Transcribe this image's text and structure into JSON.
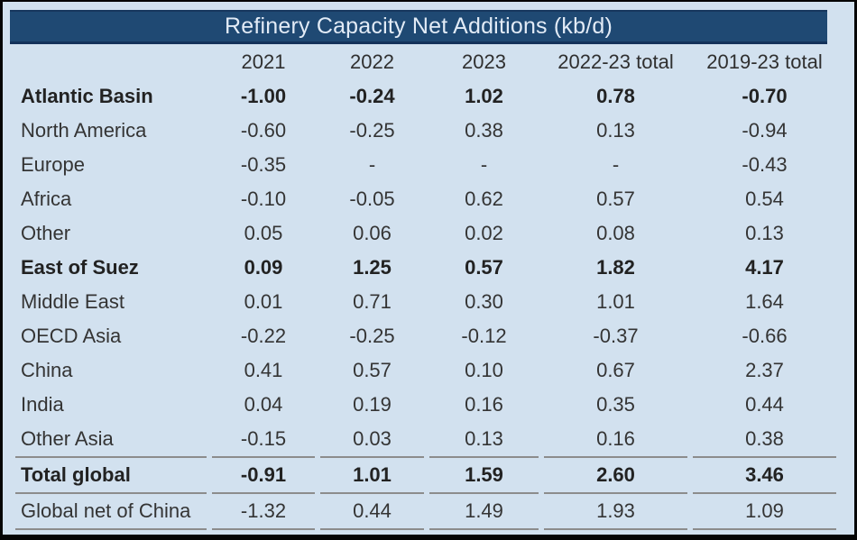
{
  "window": {
    "title": "Refinery Capacity Net Additions (kb/d)"
  },
  "chart_data": {
    "type": "table",
    "title": "Refinery Capacity Net Additions (kb/d)",
    "unit": "kb/d",
    "columns": [
      "2021",
      "2022",
      "2023",
      "2022-23 total",
      "2019-23 total"
    ],
    "rows": [
      {
        "label": "Atlantic Basin",
        "values": [
          "-1.00",
          "-0.24",
          "1.02",
          "0.78",
          "-0.70"
        ],
        "bold": true,
        "rule_above": false,
        "rule_below": false
      },
      {
        "label": "North America",
        "values": [
          "-0.60",
          "-0.25",
          "0.38",
          "0.13",
          "-0.94"
        ],
        "bold": false,
        "rule_above": false,
        "rule_below": false
      },
      {
        "label": "Europe",
        "values": [
          "-0.35",
          "-",
          "-",
          "-",
          "-0.43"
        ],
        "bold": false,
        "rule_above": false,
        "rule_below": false
      },
      {
        "label": "Africa",
        "values": [
          "-0.10",
          "-0.05",
          "0.62",
          "0.57",
          "0.54"
        ],
        "bold": false,
        "rule_above": false,
        "rule_below": false
      },
      {
        "label": "Other",
        "values": [
          "0.05",
          "0.06",
          "0.02",
          "0.08",
          "0.13"
        ],
        "bold": false,
        "rule_above": false,
        "rule_below": false
      },
      {
        "label": "East of Suez",
        "values": [
          "0.09",
          "1.25",
          "0.57",
          "1.82",
          "4.17"
        ],
        "bold": true,
        "rule_above": false,
        "rule_below": false
      },
      {
        "label": "Middle East",
        "values": [
          "0.01",
          "0.71",
          "0.30",
          "1.01",
          "1.64"
        ],
        "bold": false,
        "rule_above": false,
        "rule_below": false
      },
      {
        "label": "OECD Asia",
        "values": [
          "-0.22",
          "-0.25",
          "-0.12",
          "-0.37",
          "-0.66"
        ],
        "bold": false,
        "rule_above": false,
        "rule_below": false
      },
      {
        "label": "China",
        "values": [
          "0.41",
          "0.57",
          "0.10",
          "0.67",
          "2.37"
        ],
        "bold": false,
        "rule_above": false,
        "rule_below": false
      },
      {
        "label": "India",
        "values": [
          "0.04",
          "0.19",
          "0.16",
          "0.35",
          "0.44"
        ],
        "bold": false,
        "rule_above": false,
        "rule_below": false
      },
      {
        "label": "Other Asia",
        "values": [
          "-0.15",
          "0.03",
          "0.13",
          "0.16",
          "0.38"
        ],
        "bold": false,
        "rule_above": false,
        "rule_below": false
      },
      {
        "label": "Total global",
        "values": [
          "-0.91",
          "1.01",
          "1.59",
          "2.60",
          "3.46"
        ],
        "bold": true,
        "rule_above": true,
        "rule_below": false
      },
      {
        "label": "Global net of China",
        "values": [
          "-1.32",
          "0.44",
          "1.49",
          "1.93",
          "1.09"
        ],
        "bold": false,
        "rule_above": true,
        "rule_below": true
      }
    ],
    "layout": {
      "legend": "none",
      "grid": "row-rules-only"
    }
  },
  "colors": {
    "header_bg": "#1f4973",
    "header_edge": "#17375e",
    "header_text": "#e2ebf6",
    "page_bg": "#d2e1ef",
    "frame_border": "#050505",
    "body_text": "#343434",
    "rule": "#8c8c8c"
  }
}
